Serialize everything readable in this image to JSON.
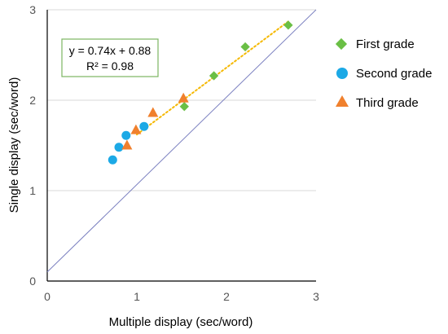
{
  "chart_data": {
    "type": "scatter",
    "xlabel": "Multiple display (sec/word)",
    "ylabel": "Single display (sec/word)",
    "xlim": [
      0,
      3
    ],
    "ylim": [
      0,
      3
    ],
    "x_ticks": [
      "0",
      "1",
      "2",
      "3"
    ],
    "y_ticks": [
      "0",
      "1",
      "2",
      "3"
    ],
    "grid": "horizontal",
    "legend_position": "right",
    "series": [
      {
        "name": "First grade",
        "marker": "diamond",
        "color": "#6abf45",
        "points": [
          [
            1.53,
            1.93
          ],
          [
            1.86,
            2.27
          ],
          [
            2.21,
            2.59
          ],
          [
            2.69,
            2.83
          ]
        ]
      },
      {
        "name": "Second grade",
        "marker": "circle",
        "color": "#1ca9e6",
        "points": [
          [
            0.73,
            1.34
          ],
          [
            0.8,
            1.48
          ],
          [
            0.88,
            1.61
          ],
          [
            1.08,
            1.71
          ]
        ]
      },
      {
        "name": "Third grade",
        "marker": "triangle",
        "color": "#f0802d",
        "points": [
          [
            0.89,
            1.5
          ],
          [
            0.99,
            1.67
          ],
          [
            1.18,
            1.86
          ],
          [
            1.52,
            2.02
          ]
        ]
      }
    ],
    "trendline": {
      "slope": 0.74,
      "intercept": 0.88,
      "x_range": [
        1.0,
        2.69
      ],
      "color": "#f5b800",
      "style": "dotted"
    },
    "reference_line": {
      "label": "",
      "color": "#7b80c0",
      "x_range": [
        0,
        3.0
      ],
      "points": [
        [
          0,
          0.1
        ],
        [
          3.0,
          3.0
        ]
      ]
    },
    "annotation": {
      "equation": "y = 0.74x + 0.88",
      "r_squared": "R² = 0.98",
      "border_color": "#7bb661"
    }
  }
}
